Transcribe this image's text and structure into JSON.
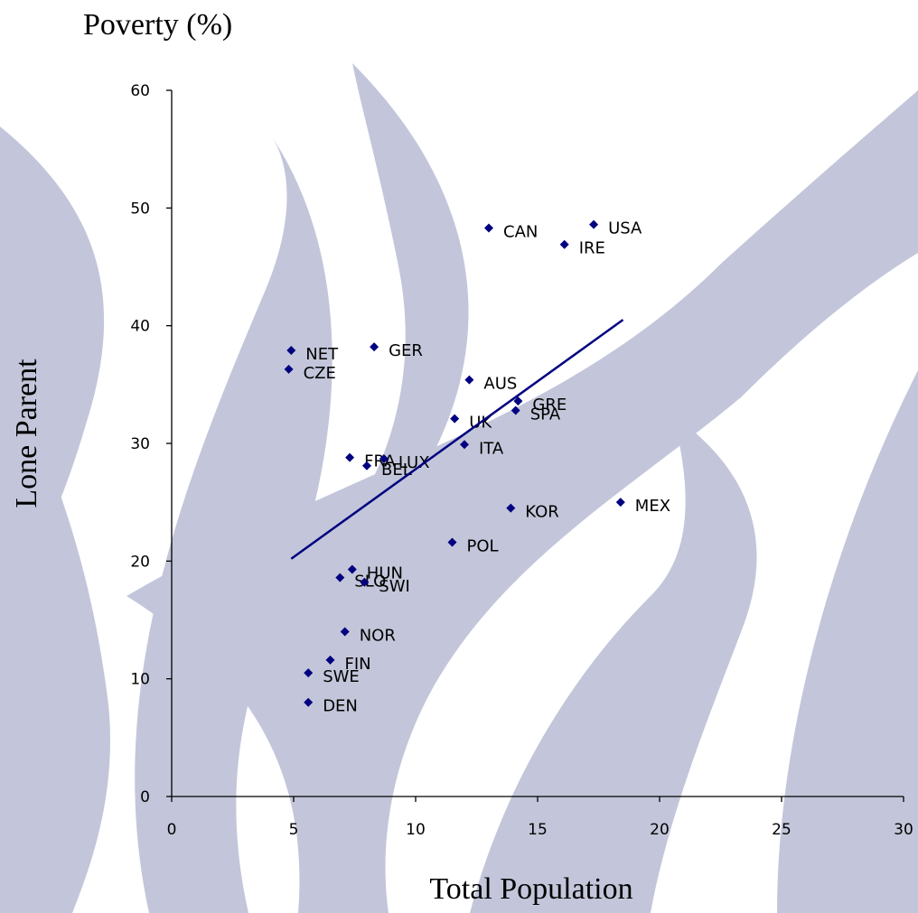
{
  "chart_data": {
    "type": "scatter",
    "title": "Poverty (%)",
    "ylabel": "Lone Parent",
    "xlabel": "Total Population",
    "xlim": [
      0,
      30
    ],
    "ylim": [
      0,
      60
    ],
    "xticks": [
      0,
      5,
      10,
      15,
      20,
      25,
      30
    ],
    "yticks": [
      0,
      10,
      20,
      30,
      40,
      50,
      60
    ],
    "series": [
      {
        "color": "#000080",
        "x": [
          4.9,
          4.8,
          8.3,
          13.0,
          17.3,
          16.1,
          12.2,
          14.2,
          14.1,
          11.6,
          12.0,
          7.3,
          8.7,
          8.0,
          13.9,
          18.4,
          11.5,
          7.4,
          6.9,
          7.9,
          7.1,
          6.5,
          5.6,
          5.6
        ],
        "values": [
          37.9,
          36.3,
          38.2,
          48.3,
          48.6,
          46.9,
          35.4,
          33.6,
          32.8,
          32.1,
          29.9,
          28.8,
          28.7,
          28.1,
          24.5,
          25.0,
          21.6,
          19.3,
          18.6,
          18.2,
          14.0,
          11.6,
          10.5,
          8.0
        ],
        "labels": [
          "NET",
          "CZE",
          "GER",
          "CAN",
          "USA",
          "IRE",
          "AUS",
          "GRE",
          "SPA",
          "UK",
          "ITA",
          "FRA",
          "LUX",
          "BEL",
          "KOR",
          "MEX",
          "POL",
          "HUN",
          "SLO",
          "SWI",
          "NOR",
          "FIN",
          "SWE",
          "DEN"
        ]
      }
    ],
    "trendline": {
      "color": "#000080",
      "x": [
        4.9,
        18.5
      ],
      "values": [
        20.2,
        40.5
      ]
    }
  }
}
